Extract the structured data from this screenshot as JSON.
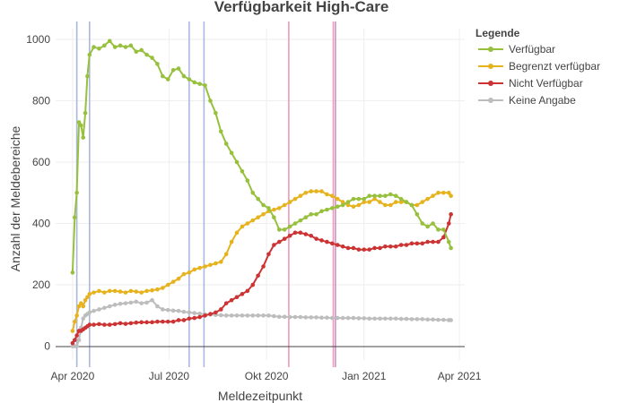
{
  "chart_data": {
    "type": "line",
    "title": "Verfügbarkeit High-Care",
    "xlabel": "Meldezeitpunkt",
    "ylabel": "Anzahl der Meldebereiche",
    "x_ticks": [
      "Apr 2020",
      "Jul 2020",
      "Okt 2020",
      "Jan 2021",
      "Apr 2021"
    ],
    "y_ticks": [
      0,
      200,
      400,
      600,
      800,
      1000
    ],
    "ylim": [
      -45,
      1035
    ],
    "xlim_days": [
      -16,
      370
    ],
    "x": [
      0,
      2,
      4,
      6,
      8,
      10,
      12,
      14,
      16,
      20,
      25,
      30,
      35,
      40,
      45,
      50,
      55,
      60,
      65,
      70,
      75,
      80,
      85,
      90,
      95,
      100,
      105,
      110,
      115,
      120,
      125,
      130,
      135,
      140,
      145,
      150,
      155,
      160,
      165,
      170,
      175,
      180,
      185,
      190,
      195,
      200,
      205,
      210,
      215,
      220,
      225,
      230,
      235,
      240,
      245,
      250,
      255,
      260,
      265,
      270,
      275,
      280,
      285,
      290,
      295,
      300,
      305,
      310,
      315,
      320,
      325,
      330,
      335,
      340,
      345,
      350,
      355,
      357
    ],
    "series": [
      {
        "name": "Verfügbar",
        "color": "#97c03d",
        "values": [
          240,
          420,
          500,
          730,
          720,
          680,
          760,
          880,
          950,
          975,
          970,
          980,
          995,
          975,
          980,
          975,
          980,
          960,
          965,
          950,
          940,
          920,
          880,
          870,
          900,
          905,
          880,
          870,
          860,
          855,
          850,
          800,
          760,
          700,
          660,
          630,
          600,
          570,
          540,
          500,
          480,
          460,
          450,
          420,
          380,
          380,
          390,
          400,
          410,
          420,
          430,
          430,
          440,
          445,
          450,
          455,
          460,
          470,
          480,
          480,
          480,
          490,
          490,
          490,
          490,
          495,
          490,
          480,
          470,
          460,
          430,
          400,
          390,
          400,
          380,
          380,
          340,
          320
        ]
      },
      {
        "name": "Begrenzt verfügbar",
        "color": "#e6b31e",
        "values": [
          50,
          80,
          100,
          130,
          140,
          130,
          150,
          160,
          170,
          175,
          180,
          175,
          180,
          180,
          178,
          175,
          180,
          178,
          175,
          180,
          182,
          185,
          190,
          200,
          210,
          220,
          235,
          240,
          250,
          255,
          260,
          265,
          270,
          275,
          300,
          340,
          370,
          390,
          400,
          410,
          420,
          430,
          440,
          445,
          450,
          460,
          470,
          480,
          490,
          500,
          505,
          505,
          505,
          495,
          490,
          480,
          470,
          460,
          455,
          460,
          470,
          470,
          480,
          470,
          460,
          460,
          470,
          470,
          470,
          460,
          460,
          470,
          480,
          490,
          500,
          500,
          500,
          490
        ]
      },
      {
        "name": "Nicht Verfügbar",
        "color": "#cc3333",
        "values": [
          10,
          20,
          35,
          50,
          50,
          55,
          60,
          65,
          70,
          70,
          72,
          70,
          70,
          72,
          75,
          73,
          75,
          77,
          78,
          78,
          78,
          80,
          80,
          80,
          80,
          85,
          85,
          90,
          92,
          95,
          100,
          105,
          110,
          120,
          140,
          150,
          160,
          170,
          180,
          200,
          230,
          260,
          300,
          330,
          340,
          350,
          360,
          370,
          370,
          365,
          360,
          350,
          345,
          340,
          335,
          330,
          325,
          320,
          320,
          315,
          315,
          315,
          320,
          320,
          325,
          325,
          325,
          330,
          330,
          335,
          335,
          335,
          340,
          340,
          340,
          355,
          400,
          430
        ]
      },
      {
        "name": "Keine Angabe",
        "color": "#bdbdbd",
        "values": [
          0,
          0,
          0,
          20,
          60,
          90,
          100,
          105,
          110,
          115,
          120,
          125,
          130,
          135,
          138,
          140,
          142,
          145,
          140,
          142,
          150,
          130,
          120,
          118,
          116,
          115,
          112,
          110,
          108,
          106,
          104,
          103,
          102,
          101,
          100,
          100,
          100,
          100,
          100,
          100,
          100,
          100,
          100,
          98,
          96,
          96,
          95,
          95,
          95,
          94,
          94,
          94,
          93,
          93,
          92,
          92,
          92,
          92,
          92,
          91,
          91,
          90,
          90,
          90,
          90,
          90,
          90,
          89,
          89,
          88,
          88,
          88,
          87,
          87,
          86,
          86,
          85,
          85
        ]
      }
    ],
    "vlines": [
      {
        "day": 4,
        "color": "#aab8e0"
      },
      {
        "day": 16,
        "color": "#aab8e0"
      },
      {
        "day": 110,
        "color": "#aab8e0"
      },
      {
        "day": 124,
        "color": "#aab8e0"
      },
      {
        "day": 204,
        "color": "#ee99bb"
      },
      {
        "day": 246,
        "color": "#ee99bb"
      },
      {
        "day": 248,
        "color": "#d090c0"
      }
    ],
    "legend": {
      "title": "Legende",
      "position": "top-right"
    }
  }
}
